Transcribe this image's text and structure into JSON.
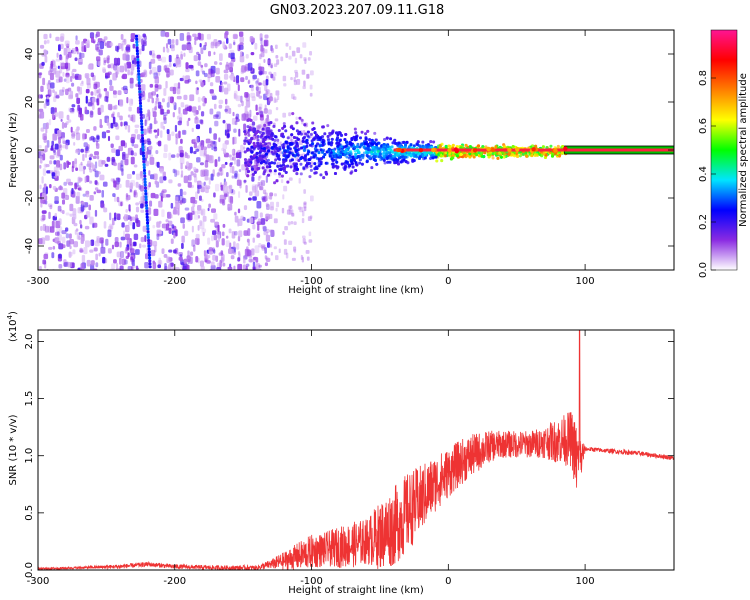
{
  "figure": {
    "title": "GN03.2023.207.09.11.G18"
  },
  "chart_data": [
    {
      "type": "heatmap",
      "xlabel": "Height of straight line (km)",
      "ylabel": "Frequency (Hz)",
      "xlim": [
        -300,
        165
      ],
      "ylim": [
        -50,
        50
      ],
      "x_ticks": [
        -300,
        -200,
        -100,
        0,
        100
      ],
      "y_ticks": [
        -40,
        -20,
        0,
        20,
        40
      ],
      "x_tick_labels": [
        "-300",
        "-200",
        "-100",
        "0",
        "100"
      ],
      "y_tick_labels": [
        "-40",
        "-20",
        "0",
        "20",
        "40"
      ],
      "colorbar": {
        "label": "Normalized spectral amplitude",
        "range": [
          0,
          1
        ],
        "ticks": [
          0.0,
          0.2,
          0.4,
          0.6,
          0.8
        ],
        "tick_labels": [
          "0.0",
          "0.2",
          "0.4",
          "0.6",
          "0.8"
        ],
        "stops": [
          "#ffffff",
          "#8a2be2",
          "#0000ff",
          "#00e5ff",
          "#00ff00",
          "#ffff00",
          "#ff7f00",
          "#ff0000",
          "#ff1493"
        ]
      },
      "features": {
        "noise_region_x": [
          -300,
          -140
        ],
        "diagonal_streak": {
          "x_top": -228,
          "y_top": 48,
          "x_bottom": -218,
          "y_bottom": -48
        },
        "carrier_line_x": [
          -140,
          165
        ],
        "carrier_frequency": 0,
        "spread_envelope": [
          {
            "x": -150,
            "half_width": 14
          },
          {
            "x": -100,
            "half_width": 12
          },
          {
            "x": -50,
            "half_width": 6
          },
          {
            "x": 0,
            "half_width": 3
          },
          {
            "x": 85,
            "half_width": 2
          }
        ]
      }
    },
    {
      "type": "line",
      "xlabel": "Height of straight line (km)",
      "ylabel": "SNR (10 * v/v)",
      "y_multiplier_label": "(x10",
      "y_multiplier_exp": "4",
      "y_multiplier_close": ")",
      "xlim": [
        -300,
        165
      ],
      "ylim": [
        0,
        2.1
      ],
      "x_ticks": [
        -300,
        -200,
        -100,
        0,
        100
      ],
      "y_ticks": [
        0.0,
        0.5,
        1.0,
        1.5,
        2.0
      ],
      "x_tick_labels": [
        "-300",
        "-200",
        "-100",
        "0",
        "100"
      ],
      "y_tick_labels": [
        "0.0",
        "0.5",
        "1.0",
        "1.5",
        "2.0"
      ],
      "color": "#ee3333",
      "series": [
        {
          "x": [
            -300,
            -270,
            -240,
            -220,
            -200,
            -170,
            -140,
            -130,
            -120,
            -110,
            -100,
            -90,
            -80,
            -70,
            -60,
            -50,
            -40,
            -30,
            -20,
            -10,
            0,
            10,
            20,
            30,
            40,
            50,
            60,
            70,
            80,
            90,
            95,
            100,
            120,
            140,
            165
          ],
          "values": [
            0.01,
            0.02,
            0.03,
            0.05,
            0.03,
            0.02,
            0.02,
            0.05,
            0.08,
            0.12,
            0.16,
            0.18,
            0.2,
            0.22,
            0.25,
            0.3,
            0.38,
            0.5,
            0.62,
            0.75,
            0.85,
            0.95,
            1.02,
            1.08,
            1.1,
            1.1,
            1.1,
            1.12,
            1.13,
            1.15,
            0.9,
            1.06,
            1.04,
            1.02,
            0.98
          ],
          "noise_amplitude": [
            0.01,
            0.01,
            0.02,
            0.02,
            0.02,
            0.02,
            0.02,
            0.04,
            0.08,
            0.12,
            0.15,
            0.15,
            0.18,
            0.2,
            0.2,
            0.3,
            0.35,
            0.35,
            0.3,
            0.25,
            0.22,
            0.2,
            0.18,
            0.14,
            0.12,
            0.12,
            0.12,
            0.14,
            0.2,
            0.25,
            0.35,
            0.02,
            0.02,
            0.02,
            0.02
          ]
        }
      ],
      "annotations": [
        {
          "x": 96,
          "y": 2.1,
          "text": ""
        },
        {
          "x": 96,
          "y": 0.25,
          "text": ""
        }
      ]
    }
  ]
}
